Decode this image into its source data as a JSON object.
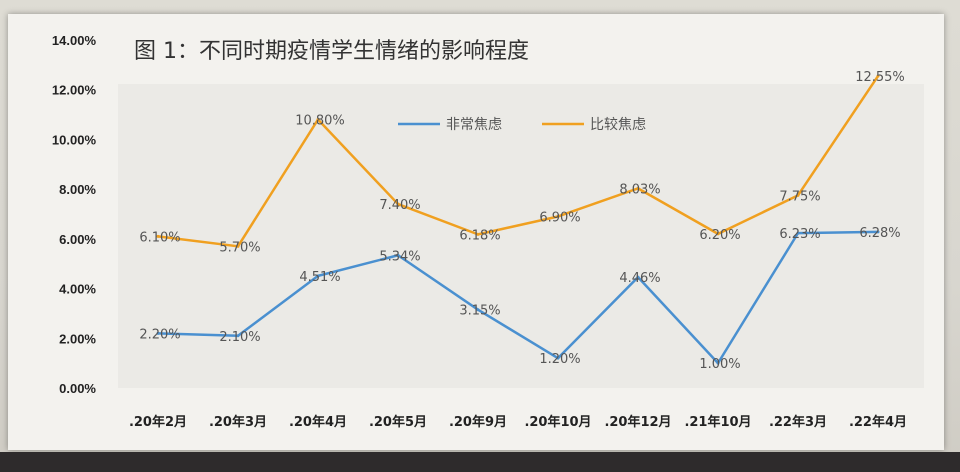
{
  "chart_data": {
    "type": "line",
    "title": "图 1：不同时期疫情学生情绪的影响程度",
    "categories": [
      ".20年2月",
      ".20年3月",
      ".20年4月",
      ".20年5月",
      ".20年9月",
      ".20年10月",
      ".20年12月",
      ".21年10月",
      ".22年3月",
      ".22年4月"
    ],
    "ylim": [
      0,
      14
    ],
    "yticks": [
      "0.00%",
      "2.00%",
      "4.00%",
      "6.00%",
      "8.00%",
      "10.00%",
      "12.00%",
      "14.00%"
    ],
    "legend_position": "top-center",
    "grid": false,
    "series": [
      {
        "name": "非常焦虑",
        "color": "#4a90d0",
        "values": [
          2.2,
          2.1,
          4.51,
          5.34,
          3.15,
          1.2,
          4.46,
          1.0,
          6.23,
          6.28
        ],
        "labels": [
          "2.20%",
          "2.10%",
          "4.51%",
          "5.34%",
          "3.15%",
          "1.20%",
          "4.46%",
          "1.00%",
          "6.23%",
          "6.28%"
        ]
      },
      {
        "name": "比较焦虑",
        "color": "#f0a020",
        "values": [
          6.1,
          5.7,
          10.8,
          7.4,
          6.18,
          6.9,
          8.03,
          6.2,
          7.75,
          12.55
        ],
        "labels": [
          "6.10%",
          "5.70%",
          "10.80%",
          "7.40%",
          "6.18%",
          "6.90%",
          "8.03%",
          "6.20%",
          "7.75%",
          "12.55%"
        ]
      }
    ]
  }
}
